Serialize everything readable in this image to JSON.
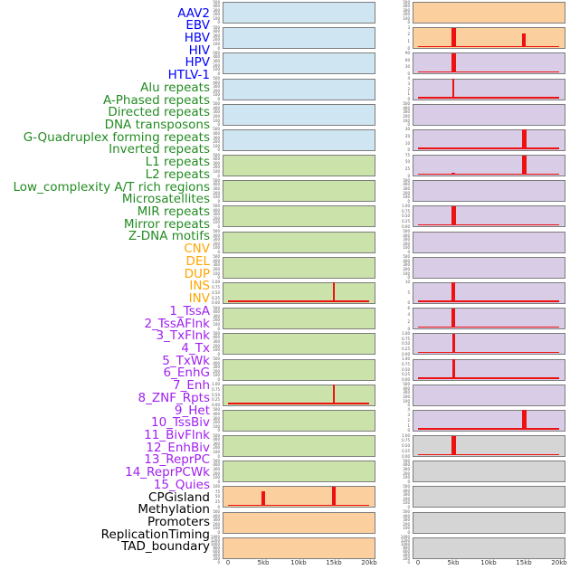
{
  "figure_title": "",
  "x_axis": {
    "tick_labels": [
      "0",
      "5kb",
      "10kb",
      "15kb",
      "20kb"
    ],
    "range_kb": [
      0,
      20
    ]
  },
  "style": {
    "spike_color": "#ee1111",
    "panel_border_color": "#7d7d7d",
    "ytick_text_color": "#555555",
    "xtick_text_color": "#333333",
    "groups": {
      "virus": {
        "label_color": "#0000ff",
        "panel_color": "#cfe6f2"
      },
      "repeat": {
        "label_color": "#228b22",
        "panel_color": "#cbe2ab"
      },
      "sv": {
        "label_color": "#ffa500",
        "panel_color": "#fcd09e"
      },
      "chromatin_state": {
        "label_color": "#a020f0",
        "panel_color": "#d8cce6"
      },
      "other": {
        "label_color": "#000000",
        "panel_color": "#d5d5d5"
      }
    }
  },
  "chart_data": {
    "type": "area",
    "subtype": "small-multiple genomic spike tracks, 2 columns x 22 rows, 44 tracks",
    "x_ticks": [
      "0",
      "5kb",
      "10kb",
      "15kb",
      "20kb"
    ],
    "x_range_kb": [
      0,
      20
    ],
    "note": "spikes listed as kb position, fraction of y-axis max, and bar width px; baseline=true means a flat red zero-line spans 0-20kb",
    "columns": [
      {
        "tracks": [
          {
            "label": "AAV2",
            "group": "virus",
            "yticks": [
              "500",
              "400",
              "300",
              "200",
              "100",
              "0"
            ],
            "baseline": false,
            "spikes": []
          },
          {
            "label": "EBV",
            "group": "virus",
            "yticks": [
              "500",
              "400",
              "300",
              "200",
              "100",
              "0"
            ],
            "baseline": false,
            "spikes": []
          },
          {
            "label": "HBV",
            "group": "virus",
            "yticks": [
              "500",
              "400",
              "300",
              "200",
              "100",
              "0"
            ],
            "baseline": false,
            "spikes": []
          },
          {
            "label": "HIV",
            "group": "virus",
            "yticks": [
              "500",
              "400",
              "300",
              "200",
              "100",
              "0"
            ],
            "baseline": false,
            "spikes": []
          },
          {
            "label": "HPV",
            "group": "virus",
            "yticks": [
              "500",
              "400",
              "300",
              "200",
              "100",
              "0"
            ],
            "baseline": false,
            "spikes": []
          },
          {
            "label": "HTLV-1",
            "group": "virus",
            "yticks": [
              "500",
              "400",
              "300",
              "200",
              "100",
              "0"
            ],
            "baseline": false,
            "spikes": []
          },
          {
            "label": "Alu repeats",
            "group": "repeat",
            "yticks": [
              "500",
              "400",
              "300",
              "200",
              "100",
              "0"
            ],
            "baseline": false,
            "spikes": []
          },
          {
            "label": "A-Phased repeats",
            "group": "repeat",
            "yticks": [
              "500",
              "400",
              "300",
              "200",
              "100",
              "0"
            ],
            "baseline": false,
            "spikes": []
          },
          {
            "label": "Directed repeats",
            "group": "repeat",
            "yticks": [
              "500",
              "400",
              "300",
              "200",
              "100",
              "0"
            ],
            "baseline": false,
            "spikes": []
          },
          {
            "label": "DNA transposons",
            "group": "repeat",
            "yticks": [
              "500",
              "400",
              "300",
              "200",
              "100",
              "0"
            ],
            "baseline": false,
            "spikes": []
          },
          {
            "label": "G-Quadruplex forming repeats",
            "group": "repeat",
            "yticks": [
              "500",
              "400",
              "300",
              "200",
              "100",
              "0"
            ],
            "baseline": false,
            "spikes": []
          },
          {
            "label": "Inverted repeats",
            "group": "repeat",
            "yticks": [
              "1.00",
              "0.75",
              "0.50",
              "0.25",
              "0.00"
            ],
            "baseline": true,
            "spikes": [
              {
                "kb": 15,
                "frac": 1.0,
                "w": 2
              }
            ]
          },
          {
            "label": "L1 repeats",
            "group": "repeat",
            "yticks": [
              "500",
              "400",
              "300",
              "200",
              "100",
              "0"
            ],
            "baseline": false,
            "spikes": []
          },
          {
            "label": "L2 repeats",
            "group": "repeat",
            "yticks": [
              "500",
              "400",
              "300",
              "200",
              "100",
              "0"
            ],
            "baseline": false,
            "spikes": []
          },
          {
            "label": "Low_complexity A/T rich regions",
            "group": "repeat",
            "yticks": [
              "500",
              "400",
              "300",
              "200",
              "100",
              "0"
            ],
            "baseline": false,
            "spikes": []
          },
          {
            "label": "Microsatellites",
            "group": "repeat",
            "yticks": [
              "1.00",
              "0.75",
              "0.50",
              "0.25",
              "0.00"
            ],
            "baseline": true,
            "spikes": [
              {
                "kb": 15,
                "frac": 1.0,
                "w": 2
              }
            ]
          },
          {
            "label": "MIR repeats",
            "group": "repeat",
            "yticks": [
              "500",
              "400",
              "300",
              "200",
              "100",
              "0"
            ],
            "baseline": false,
            "spikes": []
          },
          {
            "label": "Mirror repeats",
            "group": "repeat",
            "yticks": [
              "500",
              "400",
              "300",
              "200",
              "100",
              "0"
            ],
            "baseline": false,
            "spikes": []
          },
          {
            "label": "Z-DNA motifs",
            "group": "repeat",
            "yticks": [
              "500",
              "400",
              "300",
              "200",
              "100",
              "0"
            ],
            "baseline": false,
            "spikes": []
          },
          {
            "label": "CNV",
            "group": "sv",
            "yticks": [
              "100",
              "75",
              "50",
              "25",
              "0"
            ],
            "baseline": true,
            "spikes": [
              {
                "kb": 5,
                "frac": 0.78,
                "w": 4
              },
              {
                "kb": 15,
                "frac": 1.0,
                "w": 4
              }
            ]
          },
          {
            "label": "DEL",
            "group": "sv",
            "yticks": [
              "500",
              "400",
              "300",
              "200",
              "100",
              "0"
            ],
            "baseline": false,
            "spikes": []
          },
          {
            "label": "DUP",
            "group": "sv",
            "yticks": [
              "1400",
              "1200",
              "1000",
              "800",
              "600",
              "400",
              "200",
              "0"
            ],
            "baseline": false,
            "spikes": []
          }
        ]
      },
      {
        "tracks": [
          {
            "label": "INS",
            "group": "sv",
            "yticks": [
              "500",
              "400",
              "300",
              "200",
              "100",
              "0"
            ],
            "baseline": false,
            "spikes": []
          },
          {
            "label": "INV",
            "group": "sv",
            "yticks": [
              "3",
              "2",
              "1",
              "0"
            ],
            "baseline": true,
            "spikes": [
              {
                "kb": 5,
                "frac": 1.0,
                "w": 5
              },
              {
                "kb": 15,
                "frac": 0.7,
                "w": 4
              }
            ]
          },
          {
            "label": "1_TssA",
            "group": "chromatin_state",
            "yticks": [
              "90",
              "60",
              "30",
              "0"
            ],
            "baseline": true,
            "spikes": [
              {
                "kb": 5,
                "frac": 1.0,
                "w": 5
              }
            ]
          },
          {
            "label": "2_TssAFlnk",
            "group": "chromatin_state",
            "yticks": [
              "4",
              "3",
              "2",
              "1",
              "0"
            ],
            "baseline": true,
            "spikes": [
              {
                "kb": 5,
                "frac": 1.0,
                "w": 2
              }
            ]
          },
          {
            "label": "3_TxFlnk",
            "group": "chromatin_state",
            "yticks": [
              "500",
              "400",
              "300",
              "200",
              "100",
              "0"
            ],
            "baseline": false,
            "spikes": []
          },
          {
            "label": "4_Tx",
            "group": "chromatin_state",
            "yticks": [
              "30",
              "20",
              "10",
              "0"
            ],
            "baseline": true,
            "spikes": [
              {
                "kb": 15,
                "frac": 1.0,
                "w": 5
              }
            ]
          },
          {
            "label": "5_TxWk",
            "group": "chromatin_state",
            "yticks": [
              "75",
              "50",
              "25",
              "0"
            ],
            "baseline": true,
            "spikes": [
              {
                "kb": 5,
                "frac": 0.1,
                "w": 4
              },
              {
                "kb": 15,
                "frac": 1.0,
                "w": 5
              }
            ]
          },
          {
            "label": "6_EnhG",
            "group": "chromatin_state",
            "yticks": [
              "500",
              "400",
              "300",
              "200",
              "100",
              "0"
            ],
            "baseline": false,
            "spikes": []
          },
          {
            "label": "7_Enh",
            "group": "chromatin_state",
            "yticks": [
              "1.00",
              "0.75",
              "0.50",
              "0.25",
              "0.00"
            ],
            "baseline": true,
            "spikes": [
              {
                "kb": 5,
                "frac": 1.0,
                "w": 5
              }
            ]
          },
          {
            "label": "8_ZNF_Rpts",
            "group": "chromatin_state",
            "yticks": [
              "500",
              "400",
              "300",
              "200",
              "100",
              "0"
            ],
            "baseline": false,
            "spikes": []
          },
          {
            "label": "9_Het",
            "group": "chromatin_state",
            "yticks": [
              "500",
              "400",
              "300",
              "200",
              "100",
              "0"
            ],
            "baseline": false,
            "spikes": []
          },
          {
            "label": "10_TssBiv",
            "group": "chromatin_state",
            "yticks": [
              "10",
              "5",
              "0"
            ],
            "baseline": true,
            "spikes": [
              {
                "kb": 5,
                "frac": 1.0,
                "w": 4
              }
            ]
          },
          {
            "label": "11_BivFlnk",
            "group": "chromatin_state",
            "yticks": [
              "6",
              "4",
              "2",
              "0"
            ],
            "baseline": true,
            "spikes": [
              {
                "kb": 5,
                "frac": 1.0,
                "w": 4
              }
            ]
          },
          {
            "label": "12_EnhBiv",
            "group": "chromatin_state",
            "yticks": [
              "1.00",
              "0.75",
              "0.50",
              "0.25",
              "0.00"
            ],
            "baseline": true,
            "spikes": [
              {
                "kb": 5,
                "frac": 1.0,
                "w": 3
              }
            ]
          },
          {
            "label": "13_ReprPC",
            "group": "chromatin_state",
            "yticks": [
              "1.00",
              "0.75",
              "0.50",
              "0.25",
              "0.00"
            ],
            "baseline": true,
            "spikes": [
              {
                "kb": 5,
                "frac": 1.0,
                "w": 3
              }
            ]
          },
          {
            "label": "14_ReprPCWk",
            "group": "chromatin_state",
            "yticks": [
              "500",
              "400",
              "300",
              "200",
              "100",
              "0"
            ],
            "baseline": false,
            "spikes": []
          },
          {
            "label": "15_Quies",
            "group": "chromatin_state",
            "yticks": [
              "4",
              "3",
              "2",
              "1",
              "0"
            ],
            "baseline": true,
            "spikes": [
              {
                "kb": 15,
                "frac": 1.0,
                "w": 5
              }
            ]
          },
          {
            "label": "CPGisland",
            "group": "other",
            "yticks": [
              "1.00",
              "0.75",
              "0.50",
              "0.25",
              "0.00"
            ],
            "baseline": true,
            "spikes": [
              {
                "kb": 5,
                "frac": 1.0,
                "w": 5
              }
            ]
          },
          {
            "label": "Methylation",
            "group": "other",
            "yticks": [
              "500",
              "400",
              "300",
              "200",
              "100",
              "0"
            ],
            "baseline": false,
            "spikes": []
          },
          {
            "label": "Promoters",
            "group": "other",
            "yticks": [
              "500",
              "400",
              "300",
              "200",
              "100",
              "0"
            ],
            "baseline": false,
            "spikes": []
          },
          {
            "label": "ReplicationTiming",
            "group": "other",
            "yticks": [
              "500",
              "400",
              "300",
              "200",
              "100",
              "0"
            ],
            "baseline": false,
            "spikes": []
          },
          {
            "label": "TAD_boundary",
            "group": "other",
            "yticks": [
              "1400",
              "1200",
              "1000",
              "800",
              "600",
              "400",
              "200",
              "0"
            ],
            "baseline": false,
            "spikes": []
          }
        ]
      }
    ]
  }
}
